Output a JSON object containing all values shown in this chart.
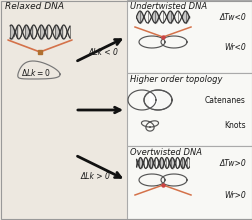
{
  "bg_color": "#ede8e0",
  "border_color": "#aaaaaa",
  "title_left": "Relaxed DNA",
  "lk0_label": "ΔLk = 0",
  "arrow_label_up": "ΔLk < 0",
  "arrow_label_down": "ΔLk > 0",
  "right_panels": [
    {
      "title": "Undertwisted DNA",
      "label1": "ΔTw<0",
      "label2": "Wr<0"
    },
    {
      "title": "Higher order topology",
      "label1": "Catenanes",
      "label2": "Knots"
    },
    {
      "title": "Overtwisted DNA",
      "label1": "ΔTw>0",
      "label2": "Wr>0"
    }
  ],
  "orange_color": "#d4724a",
  "red_dot_color": "#cc4444",
  "text_color": "#1a1a1a",
  "panel_bg": "#f8f8f5",
  "panel_border": "#aaaaaa",
  "dna_color": "#333333",
  "dna_fill": "#aaaaaa",
  "loop_color": "#555555"
}
